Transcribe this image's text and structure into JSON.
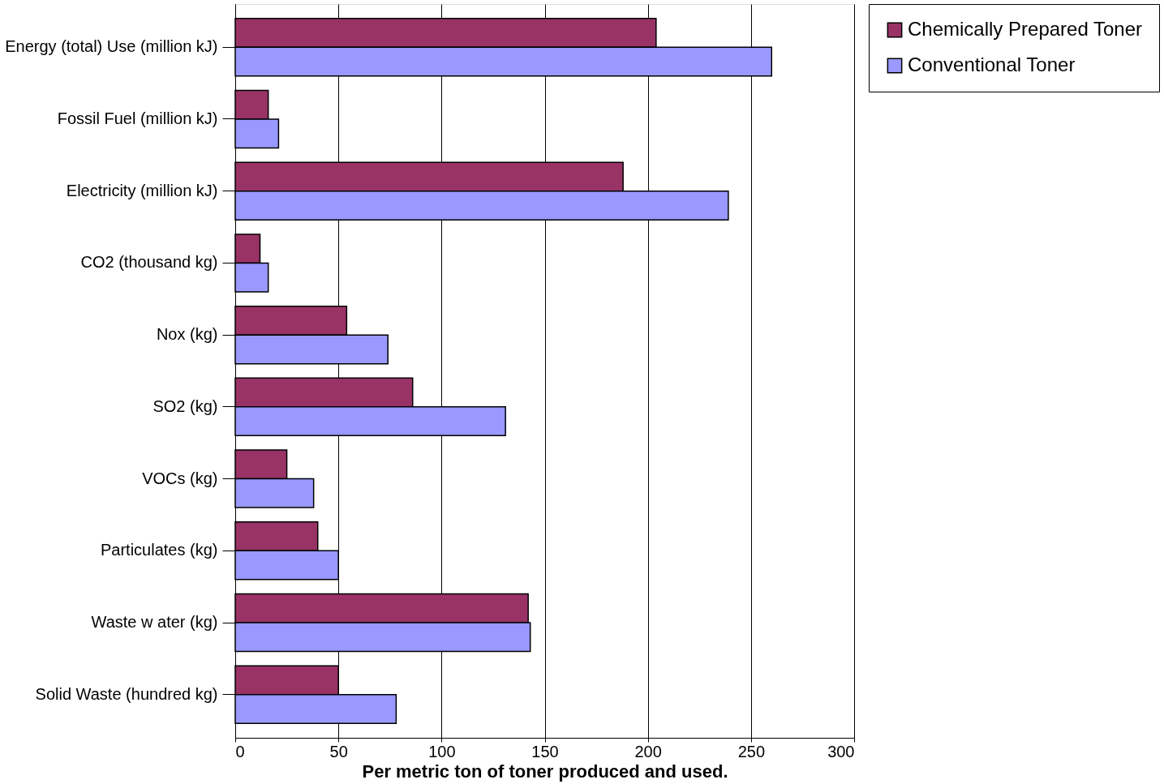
{
  "chart_data": {
    "type": "bar",
    "orientation": "horizontal",
    "xlabel": "Per metric ton of toner produced and used.",
    "categories": [
      "Energy (total) Use (million kJ)",
      "Fossil Fuel (million kJ)",
      "Electricity (million kJ)",
      "CO2 (thousand kg)",
      "Nox (kg)",
      "SO2 (kg)",
      "VOCs (kg)",
      "Particulates (kg)",
      "Waste w ater  (kg)",
      "Solid Waste (hundred kg)"
    ],
    "series": [
      {
        "name": "Chemically Prepared Toner",
        "color": "#993366",
        "values": [
          204,
          16,
          188,
          12,
          54,
          86,
          25,
          40,
          142,
          50
        ]
      },
      {
        "name": "Conventional Toner",
        "color": "#9999ff",
        "values": [
          260,
          21,
          239,
          16,
          74,
          131,
          38,
          50,
          143,
          78
        ]
      }
    ],
    "xlim": [
      0,
      300
    ],
    "xticks": [
      0,
      50,
      100,
      150,
      200,
      250,
      300
    ],
    "grid": "x",
    "legend": "right"
  }
}
